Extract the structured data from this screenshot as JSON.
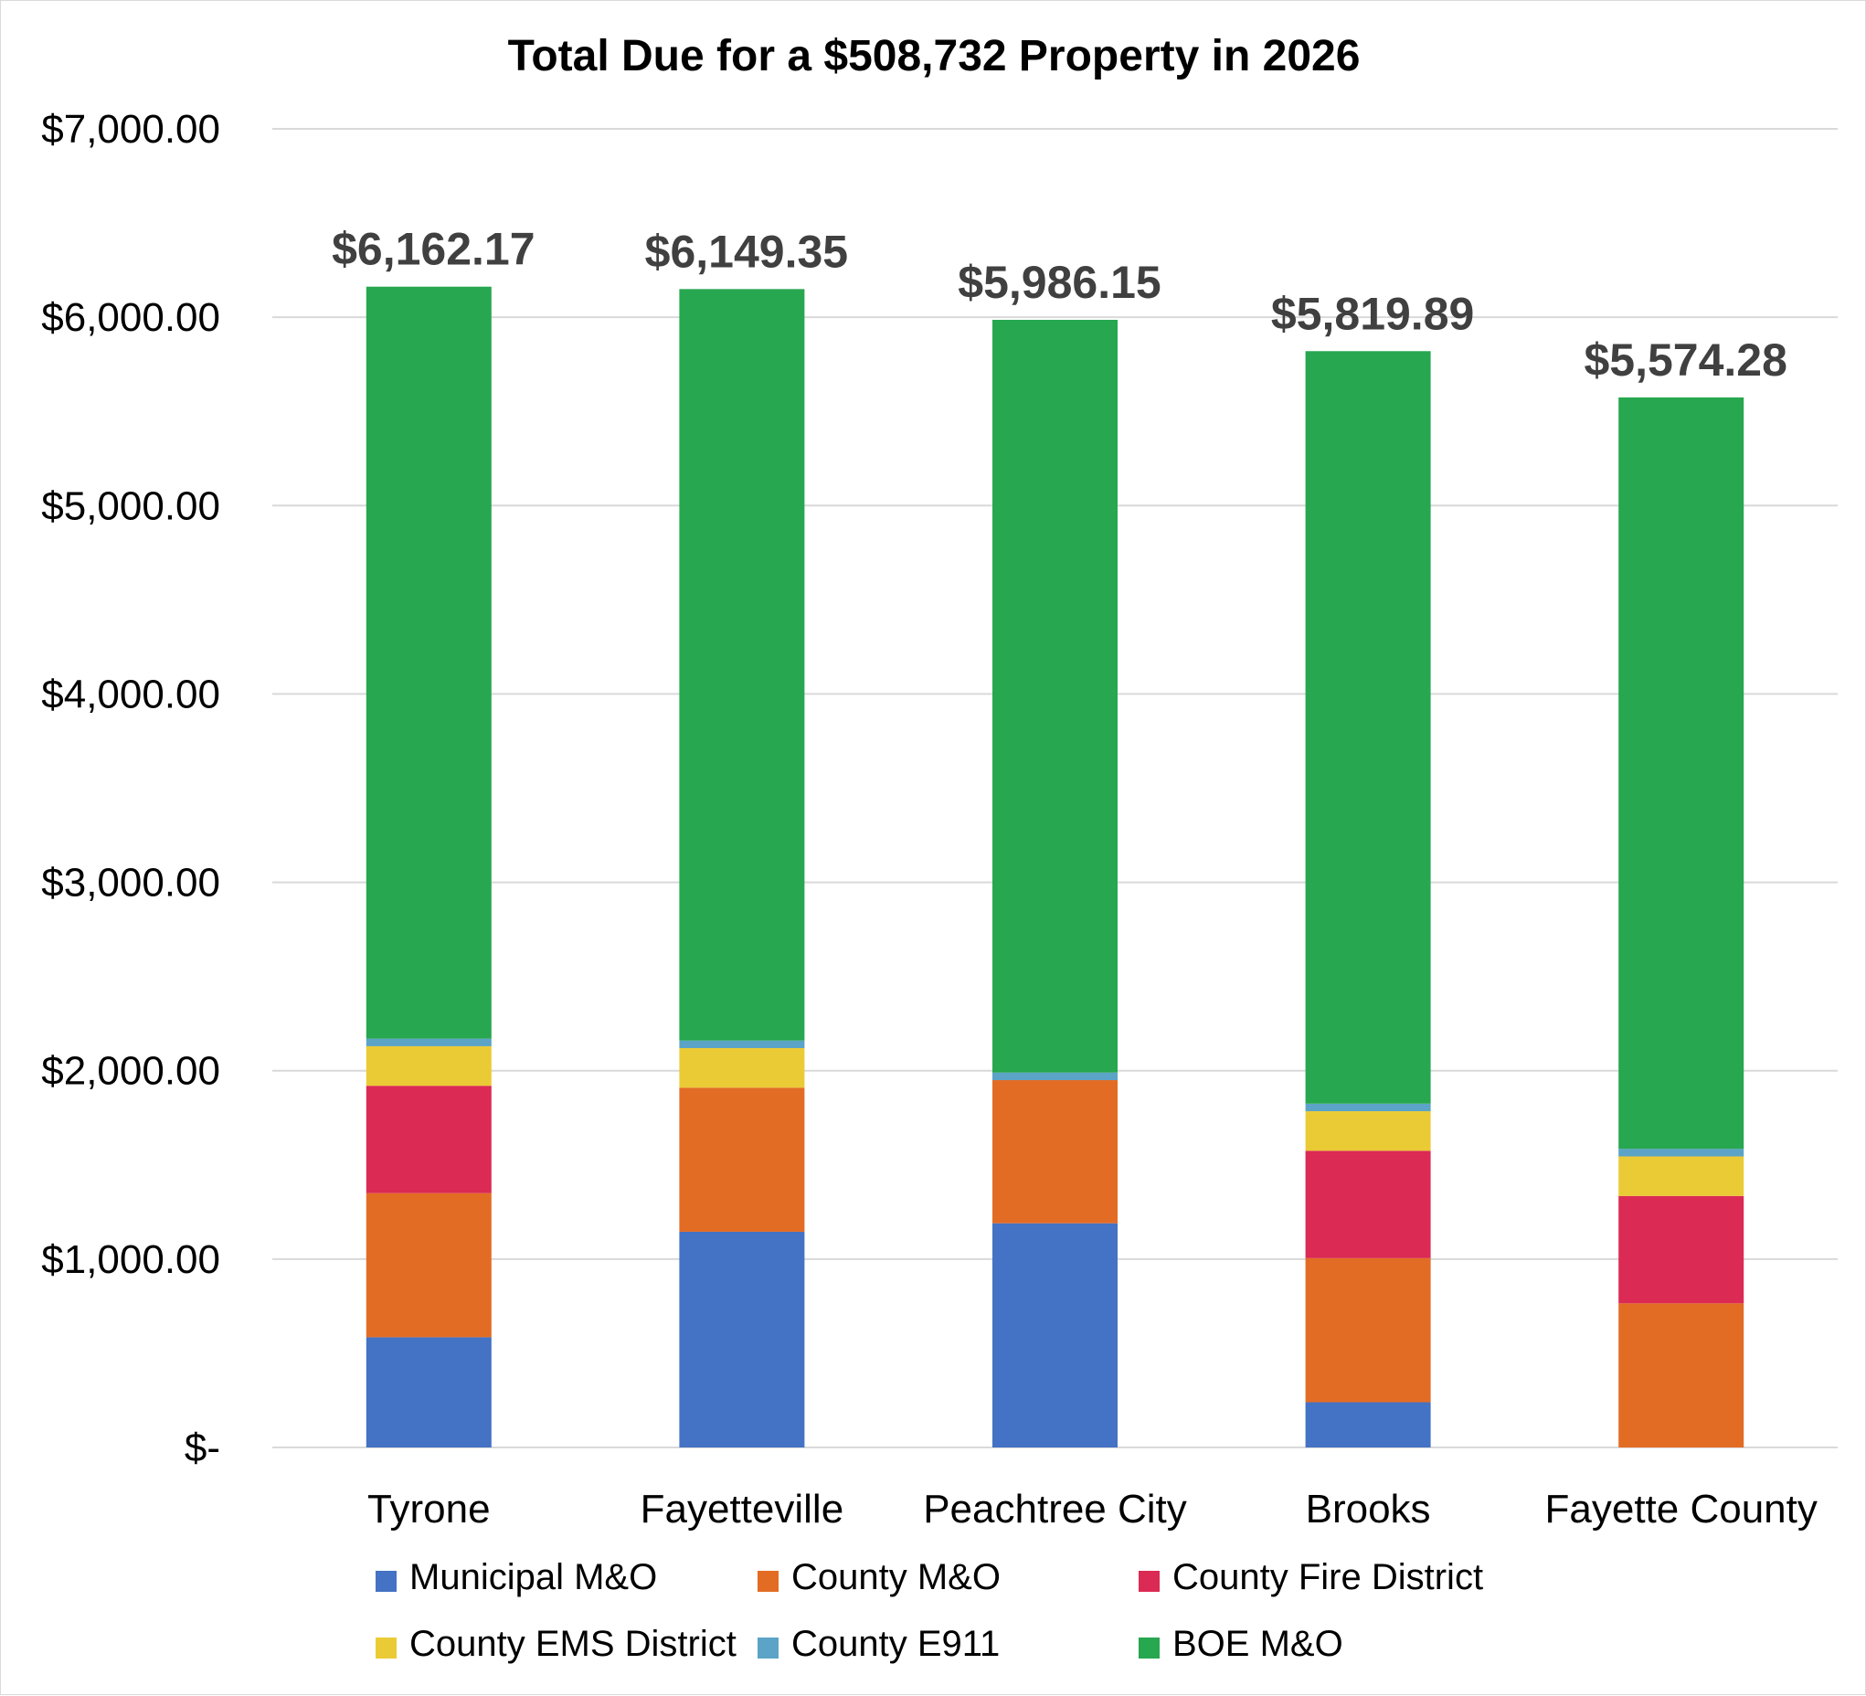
{
  "chart_data": {
    "type": "stacked-bar",
    "title": "Total Due for a $508,732 Property in 2026",
    "xlabel": "",
    "ylabel": "",
    "ylim": [
      0,
      7000
    ],
    "yticks": [
      {
        "value": 0,
        "label": "$-"
      },
      {
        "value": 1000,
        "label": "$1,000.00"
      },
      {
        "value": 2000,
        "label": "$2,000.00"
      },
      {
        "value": 3000,
        "label": "$3,000.00"
      },
      {
        "value": 4000,
        "label": "$4,000.00"
      },
      {
        "value": 5000,
        "label": "$5,000.00"
      },
      {
        "value": 6000,
        "label": "$6,000.00"
      },
      {
        "value": 7000,
        "label": "$7,000.00"
      }
    ],
    "grid": true,
    "legend_position": "bottom",
    "categories": [
      "Tyrone",
      "Fayetteville",
      "Peachtree City",
      "Brooks",
      "Fayette County"
    ],
    "totals": [
      "$6,162.17",
      "$6,149.35",
      "$5,986.15",
      "$5,819.89",
      "$5,574.28"
    ],
    "series": [
      {
        "name": "Municipal M&O",
        "color": "#4472C4",
        "values": [
          585,
          1145,
          1190,
          240,
          0
        ]
      },
      {
        "name": "County M&O",
        "color": "#E36C25",
        "values": [
          765,
          765,
          760,
          765,
          765
        ]
      },
      {
        "name": "County Fire District",
        "color": "#DB2A54",
        "values": [
          570,
          0,
          0,
          570,
          570
        ]
      },
      {
        "name": "County EMS District",
        "color": "#EBCB35",
        "values": [
          210,
          210,
          0,
          210,
          210
        ]
      },
      {
        "name": "County E911",
        "color": "#5BA3C7",
        "values": [
          40,
          40,
          40,
          40,
          40
        ]
      },
      {
        "name": "BOE M&O",
        "color": "#27A74F",
        "values": [
          3992.17,
          3989.35,
          3996.15,
          3994.89,
          3989.28
        ]
      }
    ]
  }
}
